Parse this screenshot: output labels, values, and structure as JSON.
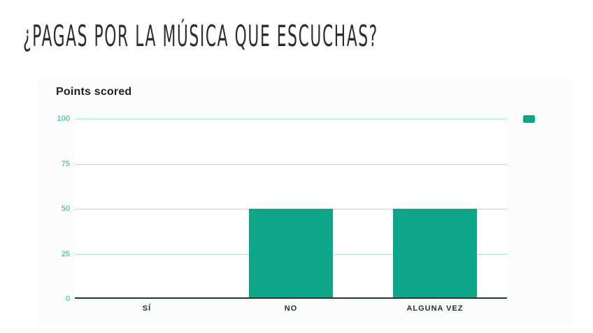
{
  "page": {
    "title": "¿PAGAS POR LA MÚSICA QUE ESCUCHAS?"
  },
  "colors": {
    "page_bg": "#ffffff",
    "title_color": "#2d2d2d",
    "chart_bg": "#fafdfc",
    "plot_bg": "#ffffff",
    "chart_title_color": "#1f1f1f",
    "bar": "#0ca588",
    "gridline": "#a8e3d3",
    "tick_label": "#29b598",
    "baseline": "#223c34",
    "category_label": "#213430"
  },
  "chart_data": {
    "type": "bar",
    "title": "Points scored",
    "categories": [
      "SÍ",
      "NO",
      "ALGUNA VEZ"
    ],
    "values": [
      0,
      50,
      50
    ],
    "series": [
      {
        "name": "Points scored",
        "color": "#0ca588",
        "values": [
          0,
          50,
          50
        ]
      }
    ],
    "xlabel": "",
    "ylabel": "",
    "ylim": [
      0,
      100
    ],
    "yticks": [
      0,
      25,
      50,
      75,
      100
    ],
    "grid": true,
    "legend_position": "top-right",
    "legend_labels_visible": false
  }
}
